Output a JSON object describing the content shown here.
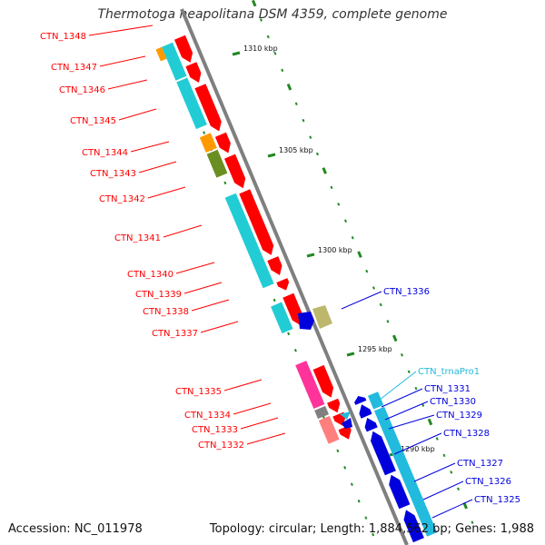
{
  "title": "Thermotoga neapolitana DSM 4359, complete genome",
  "footer": {
    "accession": "Accession: NC_011978",
    "topology": "Topology: circular; Length: 1,884,562 bp; Genes: 1,988"
  },
  "colors": {
    "backbone": "#7f7f7f",
    "forward_gene": "#ff0000",
    "reverse_gene": "#0000dd",
    "trna": "#22bbdd",
    "tick": "#228822",
    "cyan_cog": "#22ccd4",
    "orange_cog": "#ff9900",
    "olive_cog": "#6b8e23",
    "khaki_cog": "#bdb76b",
    "pink_cog": "#ff3399",
    "lightred_cog": "#ff7f7f",
    "gray_cog": "#808080"
  },
  "kbp_labels": [
    "1310 kbp",
    "1305 kbp",
    "1300 kbp",
    "1295 kbp",
    "1290 kbp"
  ],
  "genes_left": [
    {
      "label": "CTN_1348"
    },
    {
      "label": "CTN_1347"
    },
    {
      "label": "CTN_1346"
    },
    {
      "label": "CTN_1345"
    },
    {
      "label": "CTN_1344"
    },
    {
      "label": "CTN_1343"
    },
    {
      "label": "CTN_1342"
    },
    {
      "label": "CTN_1341"
    },
    {
      "label": "CTN_1340"
    },
    {
      "label": "CTN_1339"
    },
    {
      "label": "CTN_1338"
    },
    {
      "label": "CTN_1337"
    },
    {
      "label": "CTN_1335"
    },
    {
      "label": "CTN_1334"
    },
    {
      "label": "CTN_1333"
    },
    {
      "label": "CTN_1332"
    }
  ],
  "genes_right": [
    {
      "label": "CTN_1336"
    },
    {
      "label": "CTN_trnaPro1"
    },
    {
      "label": "CTN_1331"
    },
    {
      "label": "CTN_1330"
    },
    {
      "label": "CTN_1329"
    },
    {
      "label": "CTN_1328"
    },
    {
      "label": "CTN_1327"
    },
    {
      "label": "CTN_1326"
    },
    {
      "label": "CTN_1325"
    }
  ]
}
